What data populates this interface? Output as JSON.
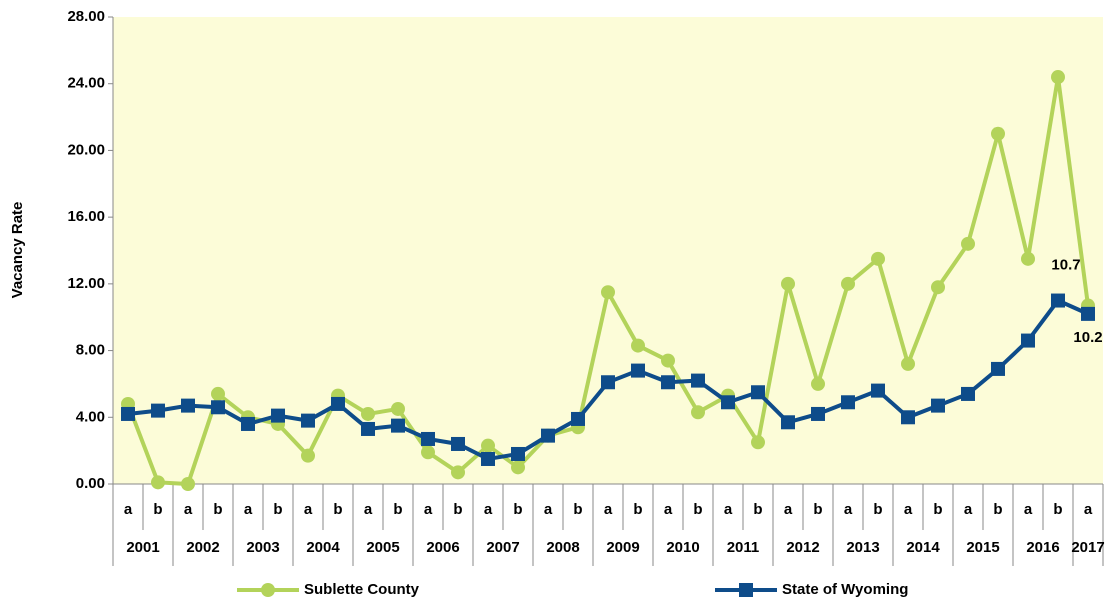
{
  "chart_data": {
    "type": "line",
    "y_label": "Vacancy Rate",
    "categories": [
      "a",
      "b",
      "a",
      "b",
      "a",
      "b",
      "a",
      "b",
      "a",
      "b",
      "a",
      "b",
      "a",
      "b",
      "a",
      "b",
      "a",
      "b",
      "a",
      "b",
      "a",
      "b",
      "a",
      "b",
      "a",
      "b",
      "a",
      "b",
      "a",
      "b",
      "a",
      "b",
      "a"
    ],
    "category_groups": [
      "2001",
      "2002",
      "2003",
      "2004",
      "2005",
      "2006",
      "2007",
      "2008",
      "2009",
      "2010",
      "2011",
      "2012",
      "2013",
      "2014",
      "2015",
      "2016",
      "2017"
    ],
    "ylim": [
      0,
      28
    ],
    "yticks": [
      {
        "value": 0,
        "label": "0.00"
      },
      {
        "value": 4,
        "label": "4.00"
      },
      {
        "value": 8,
        "label": "8.00"
      },
      {
        "value": 12,
        "label": "12.00"
      },
      {
        "value": 16,
        "label": "16.00"
      },
      {
        "value": 20,
        "label": "20.00"
      },
      {
        "value": 24,
        "label": "24.00"
      },
      {
        "value": 28,
        "label": "28.00"
      }
    ],
    "background": "#fcfcd8",
    "show_last_value_label": true,
    "series": [
      {
        "name": "Sublette County",
        "color": "#b3d35a",
        "marker": "circle",
        "values": [
          4.8,
          0.1,
          0.0,
          5.4,
          4.0,
          3.6,
          1.7,
          5.3,
          4.2,
          4.5,
          1.9,
          0.7,
          2.3,
          1.0,
          2.9,
          3.4,
          11.5,
          8.3,
          7.4,
          4.3,
          5.3,
          2.5,
          12.0,
          6.0,
          12.0,
          13.5,
          7.2,
          11.8,
          14.4,
          21.0,
          13.5,
          24.4,
          10.7
        ]
      },
      {
        "name": "State of Wyoming",
        "color": "#0e4c8a",
        "marker": "square",
        "values": [
          4.2,
          4.4,
          4.7,
          4.6,
          3.6,
          4.1,
          3.8,
          4.8,
          3.3,
          3.5,
          2.7,
          2.4,
          1.5,
          1.8,
          2.9,
          3.9,
          6.1,
          6.8,
          6.1,
          6.2,
          4.9,
          5.5,
          3.7,
          4.2,
          4.9,
          5.6,
          4.0,
          4.7,
          5.4,
          6.9,
          8.6,
          11.0,
          10.2
        ]
      }
    ]
  }
}
